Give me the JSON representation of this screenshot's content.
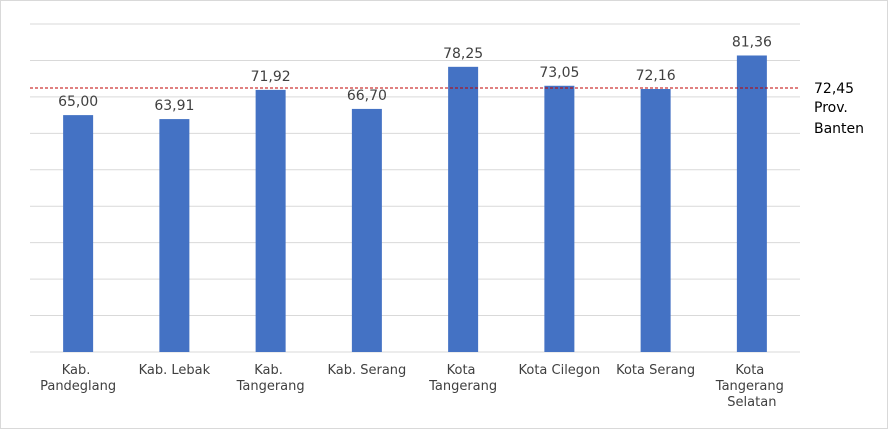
{
  "chart_data": {
    "type": "bar",
    "categories": [
      "Kab. Pandeglang",
      "Kab. Lebak",
      "Kab. Tangerang",
      "Kab. Serang",
      "Kota Tangerang",
      "Kota Cilegon",
      "Kota Serang",
      "Kota Tangerang Selatan"
    ],
    "values": [
      65.0,
      63.91,
      71.92,
      66.7,
      78.25,
      73.05,
      72.16,
      81.36
    ],
    "value_labels": [
      "65,00",
      "63,91",
      "71,92",
      "66,70",
      "78,25",
      "73,05",
      "72,16",
      "81,36"
    ],
    "color": "#4472c4",
    "ylim": [
      0,
      90
    ],
    "yticks": [
      0,
      10,
      20,
      30,
      40,
      50,
      60,
      70,
      80,
      90
    ],
    "grid": true,
    "reference_line": {
      "value": 72.45,
      "label": "72,45",
      "name": "Prov. Banten",
      "color": "#c00000"
    }
  }
}
